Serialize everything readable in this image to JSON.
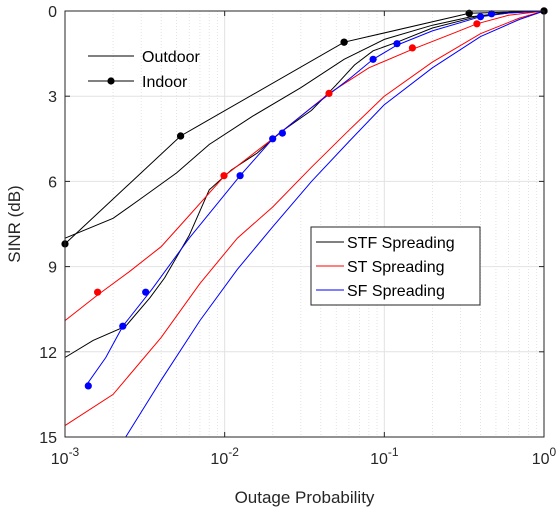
{
  "chart_data": {
    "type": "line",
    "title": "",
    "xlabel": "Outage Probability",
    "ylabel": "SINR (dB)",
    "x_scale": "log",
    "xlim": [
      0.001,
      1
    ],
    "ylim": [
      0,
      15
    ],
    "y_reversed": true,
    "grid": true,
    "x_ticks": [
      {
        "value": 0.001,
        "base": "10",
        "exp": "-3"
      },
      {
        "value": 0.01,
        "base": "10",
        "exp": "-2"
      },
      {
        "value": 0.1,
        "base": "10",
        "exp": "-1"
      },
      {
        "value": 1,
        "base": "10",
        "exp": "0"
      }
    ],
    "y_ticks": [
      {
        "value": 0,
        "label": "0"
      },
      {
        "value": 3,
        "label": "3"
      },
      {
        "value": 6,
        "label": "6"
      },
      {
        "value": 9,
        "label": "9"
      },
      {
        "value": 12,
        "label": "12"
      },
      {
        "value": 15,
        "label": "15"
      }
    ],
    "legend_environment": {
      "placement": "top-left",
      "entries": [
        {
          "label": "Outdoor",
          "marker": "none",
          "color": "#000000"
        },
        {
          "label": "Indoor",
          "marker": "circle",
          "color": "#000000"
        }
      ]
    },
    "legend_scheme": {
      "placement": "center-right",
      "entries": [
        {
          "label": "STF Spreading",
          "color": "#000000"
        },
        {
          "label": "ST Spreading",
          "color": "#ff0000"
        },
        {
          "label": "SF Spreading",
          "color": "#0000ff"
        }
      ]
    },
    "series": [
      {
        "scheme": "STF",
        "env": "Outdoor",
        "color": "#000000",
        "markers": false,
        "points": [
          [
            0.001,
            8.0
          ],
          [
            0.002,
            7.3
          ],
          [
            0.003,
            6.6
          ],
          [
            0.005,
            5.7
          ],
          [
            0.008,
            4.7
          ],
          [
            0.015,
            3.7
          ],
          [
            0.03,
            2.7
          ],
          [
            0.056,
            1.7
          ],
          [
            0.1,
            1.0
          ],
          [
            0.2,
            0.5
          ],
          [
            0.35,
            0.2
          ],
          [
            0.6,
            0.05
          ],
          [
            1,
            0
          ]
        ]
      },
      {
        "scheme": "STF",
        "env": "Indoor",
        "color": "#000000",
        "markers": true,
        "points": [
          [
            0.001,
            8.2
          ],
          [
            0.0053,
            4.4
          ],
          [
            0.056,
            1.1
          ],
          [
            0.34,
            0.08
          ],
          [
            1,
            0
          ]
        ]
      },
      {
        "scheme": "STF",
        "env": "Outdoor",
        "color": "#000000",
        "markers": false,
        "points": [
          [
            0.001,
            12.2
          ],
          [
            0.0015,
            11.6
          ],
          [
            0.0024,
            11.1
          ],
          [
            0.0034,
            10.1
          ],
          [
            0.0042,
            9.4
          ],
          [
            0.006,
            7.9
          ],
          [
            0.008,
            6.3
          ],
          [
            0.011,
            5.6
          ],
          [
            0.016,
            5.0
          ],
          [
            0.022,
            4.3
          ],
          [
            0.035,
            3.5
          ],
          [
            0.05,
            2.6
          ],
          [
            0.065,
            1.9
          ],
          [
            0.085,
            1.4
          ],
          [
            0.12,
            1.1
          ],
          [
            0.2,
            0.6
          ],
          [
            0.38,
            0.2
          ],
          [
            0.6,
            0.07
          ],
          [
            1,
            0
          ]
        ]
      },
      {
        "scheme": "ST",
        "env": "Outdoor",
        "color": "#ff0000",
        "markers": false,
        "points": [
          [
            0.001,
            10.9
          ],
          [
            0.0016,
            10.0
          ],
          [
            0.0025,
            9.2
          ],
          [
            0.004,
            8.3
          ],
          [
            0.006,
            7.2
          ],
          [
            0.01,
            5.8
          ],
          [
            0.02,
            4.5
          ],
          [
            0.045,
            2.9
          ],
          [
            0.08,
            2.0
          ],
          [
            0.15,
            1.35
          ],
          [
            0.28,
            0.75
          ],
          [
            0.38,
            0.45
          ],
          [
            0.6,
            0.15
          ],
          [
            1,
            0
          ]
        ]
      },
      {
        "scheme": "ST",
        "env": "Outdoor",
        "color": "#ff0000",
        "markers": false,
        "points": [
          [
            0.001,
            14.6
          ],
          [
            0.002,
            13.5
          ],
          [
            0.004,
            11.5
          ],
          [
            0.007,
            9.6
          ],
          [
            0.012,
            8.0
          ],
          [
            0.02,
            6.9
          ],
          [
            0.035,
            5.5
          ],
          [
            0.06,
            4.2
          ],
          [
            0.1,
            3.0
          ],
          [
            0.2,
            1.8
          ],
          [
            0.4,
            0.8
          ],
          [
            0.7,
            0.25
          ],
          [
            1,
            0
          ]
        ]
      },
      {
        "scheme": "SF",
        "env": "Outdoor",
        "color": "#0000ff",
        "markers": false,
        "points": [
          [
            0.00135,
            13.2
          ],
          [
            0.0018,
            12.2
          ],
          [
            0.0023,
            11.1
          ],
          [
            0.0035,
            9.8
          ],
          [
            0.006,
            8.0
          ],
          [
            0.0125,
            5.8
          ],
          [
            0.02,
            4.5
          ],
          [
            0.035,
            3.4
          ],
          [
            0.06,
            2.4
          ],
          [
            0.085,
            1.7
          ],
          [
            0.12,
            1.2
          ],
          [
            0.2,
            0.7
          ],
          [
            0.4,
            0.2
          ],
          [
            0.6,
            0.07
          ],
          [
            1,
            0
          ]
        ]
      },
      {
        "scheme": "SF",
        "env": "Outdoor",
        "color": "#0000ff",
        "markers": false,
        "points": [
          [
            0.0024,
            15.0
          ],
          [
            0.004,
            13.0
          ],
          [
            0.007,
            10.9
          ],
          [
            0.012,
            9.1
          ],
          [
            0.02,
            7.6
          ],
          [
            0.035,
            6.0
          ],
          [
            0.06,
            4.6
          ],
          [
            0.1,
            3.3
          ],
          [
            0.2,
            2.0
          ],
          [
            0.4,
            0.9
          ],
          [
            0.7,
            0.3
          ],
          [
            1,
            0
          ]
        ]
      },
      {
        "scheme": "ST",
        "env": "Indoor",
        "color": "#ff0000",
        "markers": true,
        "line": false,
        "points": [
          [
            0.0016,
            9.9
          ],
          [
            0.0099,
            5.8
          ],
          [
            0.045,
            2.9
          ],
          [
            0.15,
            1.3
          ],
          [
            0.38,
            0.45
          ],
          [
            1,
            0
          ]
        ]
      },
      {
        "scheme": "SF",
        "env": "Indoor",
        "color": "#0000ff",
        "markers": true,
        "line": false,
        "points": [
          [
            0.0014,
            13.2
          ],
          [
            0.0023,
            11.1
          ],
          [
            0.0032,
            9.9
          ],
          [
            0.0125,
            5.8
          ],
          [
            0.02,
            4.5
          ],
          [
            0.023,
            4.3
          ],
          [
            0.085,
            1.7
          ],
          [
            0.12,
            1.15
          ],
          [
            0.4,
            0.2
          ],
          [
            0.47,
            0.1
          ],
          [
            1,
            0
          ]
        ]
      },
      {
        "scheme": "STF",
        "env": "Indoor",
        "color": "#000000",
        "markers": true,
        "line": false,
        "points": [
          [
            0.0053,
            4.4
          ],
          [
            0.056,
            1.1
          ],
          [
            0.34,
            0.08
          ],
          [
            1,
            0
          ]
        ]
      }
    ]
  }
}
